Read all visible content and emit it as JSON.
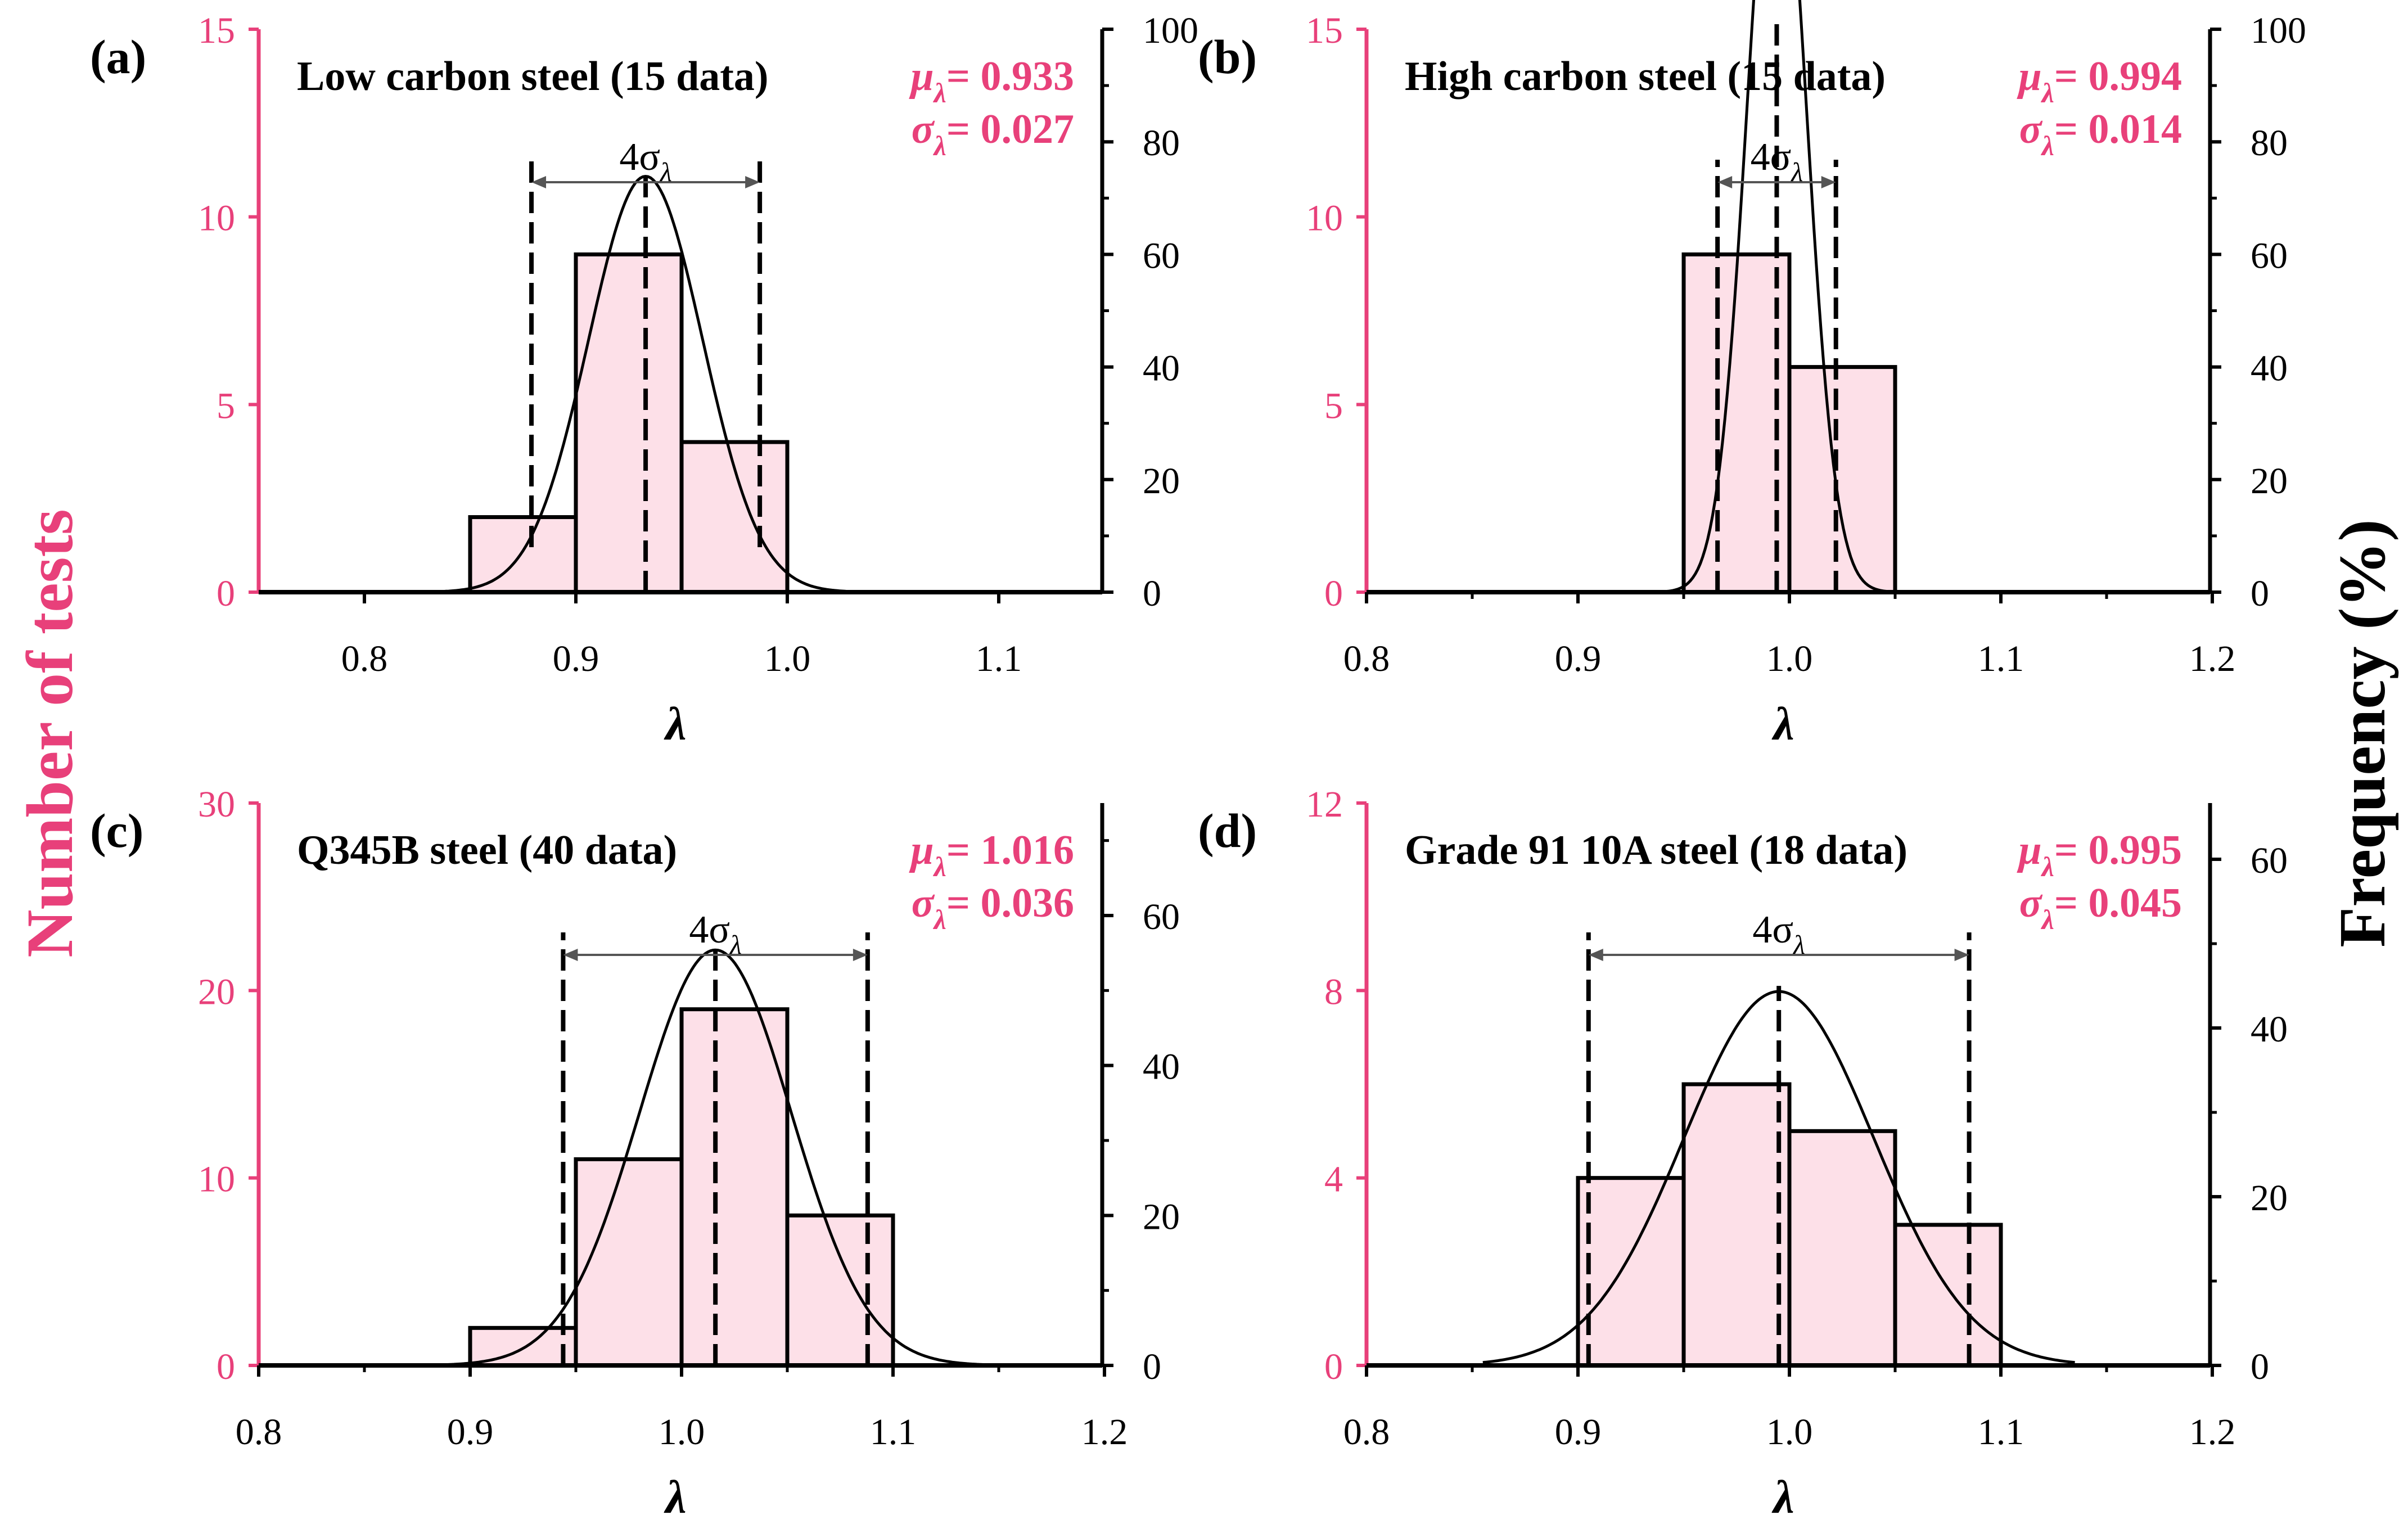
{
  "figure": {
    "left_axis_title": "Number of tests",
    "right_axis_title": "Frequency (%)",
    "x_axis_symbol": "λ",
    "colors": {
      "accent": "#e8407a",
      "bar_fill": "#fde0e8",
      "ink": "#000000"
    }
  },
  "chart_data": [
    {
      "type": "bar",
      "panel_label": "(a)",
      "title": "Low carbon steel (15 data)",
      "mu_label": "μ",
      "mu_value": "= 0.933",
      "sigma_label": "σ",
      "sigma_value": "= 0.027",
      "lambda_subscript": "λ",
      "span_label": "4σ",
      "mu": 0.933,
      "sigma": 0.027,
      "bin_edges": [
        0.85,
        0.9,
        0.95,
        1.0
      ],
      "counts": [
        2,
        9,
        4
      ],
      "xlim": [
        0.75,
        1.15
      ],
      "xticks": [
        0.8,
        0.9,
        1.0,
        1.1
      ],
      "xtick_labels": [
        "0.8",
        "0.9",
        "1.0",
        "1.1"
      ],
      "ylim": [
        0,
        15
      ],
      "yticks": [
        0,
        5,
        10,
        15
      ],
      "ytick_labels": [
        "0",
        "5",
        "10",
        "15"
      ],
      "y2lim": [
        0,
        100
      ],
      "y2ticks": [
        0,
        20,
        40,
        60,
        80,
        100
      ],
      "y2tick_labels": [
        "0",
        "20",
        "40",
        "60",
        "80",
        "100"
      ],
      "xlabel": "λ",
      "ylabel": "Number of tests",
      "y2label": "Frequency (%)"
    },
    {
      "type": "bar",
      "panel_label": "(b)",
      "title": "High carbon steel (15 data)",
      "mu_label": "μ",
      "mu_value": "= 0.994",
      "sigma_label": "σ",
      "sigma_value": "= 0.014",
      "lambda_subscript": "λ",
      "span_label": "4σ",
      "mu": 0.994,
      "sigma": 0.014,
      "bin_edges": [
        0.95,
        1.0,
        1.05
      ],
      "counts": [
        9,
        6
      ],
      "xlim": [
        0.8,
        1.2
      ],
      "xticks": [
        0.8,
        0.9,
        1.0,
        1.1,
        1.2
      ],
      "xtick_labels": [
        "0.8",
        "0.9",
        "1.0",
        "1.1",
        "1.2"
      ],
      "ylim": [
        0,
        15
      ],
      "yticks": [
        0,
        5,
        10,
        15
      ],
      "ytick_labels": [
        "0",
        "5",
        "10",
        "15"
      ],
      "y2lim": [
        0,
        100
      ],
      "y2ticks": [
        0,
        20,
        40,
        60,
        80,
        100
      ],
      "y2tick_labels": [
        "0",
        "20",
        "40",
        "60",
        "80",
        "100"
      ],
      "xlabel": "λ",
      "ylabel": "Number of tests",
      "y2label": "Frequency (%)"
    },
    {
      "type": "bar",
      "panel_label": "(c)",
      "title": "Q345B steel (40 data)",
      "mu_label": "μ",
      "mu_value": "= 1.016",
      "sigma_label": "σ",
      "sigma_value": "= 0.036",
      "lambda_subscript": "λ",
      "span_label": "4σ",
      "mu": 1.016,
      "sigma": 0.036,
      "bin_edges": [
        0.9,
        0.95,
        1.0,
        1.05,
        1.1
      ],
      "counts": [
        2,
        11,
        19,
        8
      ],
      "xlim": [
        0.8,
        1.2
      ],
      "xticks": [
        0.8,
        0.9,
        1.0,
        1.1,
        1.2
      ],
      "xtick_labels": [
        "0.8",
        "0.9",
        "1.0",
        "1.1",
        "1.2"
      ],
      "ylim": [
        0,
        30
      ],
      "yticks": [
        0,
        10,
        20,
        30
      ],
      "ytick_labels": [
        "0",
        "10",
        "20",
        "30"
      ],
      "y2lim": [
        0,
        75
      ],
      "y2ticks": [
        0,
        20,
        40,
        60
      ],
      "y2tick_labels": [
        "0",
        "20",
        "40",
        "60"
      ],
      "xlabel": "λ",
      "ylabel": "Number of tests",
      "y2label": "Frequency (%)"
    },
    {
      "type": "bar",
      "panel_label": "(d)",
      "title": "Grade 91 10A steel (18 data)",
      "mu_label": "μ",
      "mu_value": "= 0.995",
      "sigma_label": "σ",
      "sigma_value": "= 0.045",
      "lambda_subscript": "λ",
      "span_label": "4σ",
      "mu": 0.995,
      "sigma": 0.045,
      "bin_edges": [
        0.9,
        0.95,
        1.0,
        1.05,
        1.1
      ],
      "counts": [
        4,
        6,
        5,
        3
      ],
      "xlim": [
        0.8,
        1.2
      ],
      "xticks": [
        0.8,
        0.9,
        1.0,
        1.1,
        1.2
      ],
      "xtick_labels": [
        "0.8",
        "0.9",
        "1.0",
        "1.1",
        "1.2"
      ],
      "ylim": [
        0,
        12
      ],
      "yticks": [
        0,
        4,
        8,
        12
      ],
      "ytick_labels": [
        "0",
        "4",
        "8",
        "12"
      ],
      "y2lim": [
        0,
        66.67
      ],
      "y2ticks": [
        0,
        20,
        40,
        60
      ],
      "y2tick_labels": [
        "0",
        "20",
        "40",
        "60"
      ],
      "xlabel": "λ",
      "ylabel": "Number of tests",
      "y2label": "Frequency (%)"
    }
  ]
}
